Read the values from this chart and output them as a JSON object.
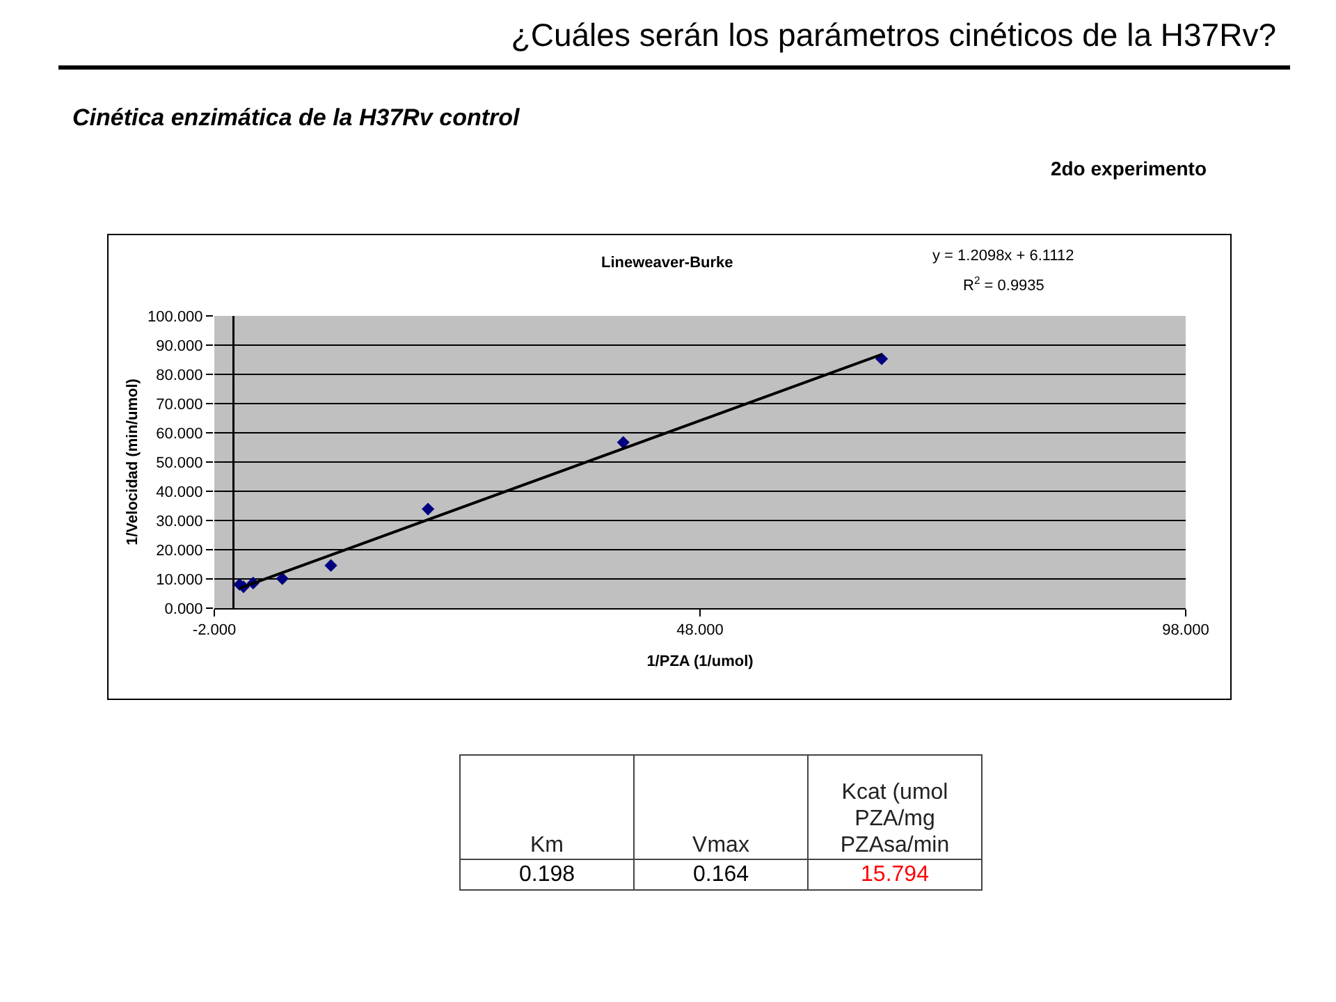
{
  "chart_data": [
    {
      "type": "scatter",
      "title": "¿Cuáles serán los parámetros cinéticos de la H37Rv?",
      "subtitle": "Cinética enzimática de la H37Rv control",
      "annotations": [
        "2do experimento",
        "Lineweaver-Burke",
        "y = 1.2098x + 6.1112",
        "R$^{2}$ = 0.9935"
      ],
      "xlabel": "1/PZA (1/umol)",
      "ylabel": "1/Velocidad (min/umol)",
      "x": [
        0.6,
        1.0,
        2.0,
        5.0,
        10.0,
        20.0,
        40.1,
        66.7
      ],
      "series": [
        {
          "color": "#000080",
          "values": [
            8.1,
            7.3,
            8.6,
            10.1,
            14.6,
            33.9,
            56.7,
            85.3
          ]
        },
        {
          "type": "line",
          "color": "#000000",
          "marker": "none",
          "x": [
            0.6,
            66.7
          ],
          "values": [
            6.8,
            86.8
          ]
        }
      ],
      "xlim": [
        -2,
        98
      ],
      "xticks": [
        {
          "value": -2,
          "label": "-2.000"
        },
        {
          "value": 48,
          "label": "48.000"
        },
        {
          "value": 98,
          "label": "98.000"
        }
      ],
      "ylim": [
        0,
        100
      ],
      "yticks": [
        {
          "value": 0,
          "label": "0.000"
        },
        {
          "value": 10,
          "label": "10.000"
        },
        {
          "value": 20,
          "label": "20.000"
        },
        {
          "value": 30,
          "label": "30.000"
        },
        {
          "value": 40,
          "label": "40.000"
        },
        {
          "value": 50,
          "label": "50.000"
        },
        {
          "value": 60,
          "label": "60.000"
        },
        {
          "value": 70,
          "label": "70.000"
        },
        {
          "value": 80,
          "label": "80.000"
        },
        {
          "value": 90,
          "label": "90.000"
        },
        {
          "value": 100,
          "label": "100.000"
        }
      ],
      "grid": "y",
      "marker": "diamond"
    },
    {
      "type": "other",
      "categories": [
        "Km",
        "Vmax",
        "Kcat (umol PZA/mg PZAsa/min"
      ],
      "values": [
        0.198,
        0.164,
        15.794
      ],
      "colors": [
        "#000000",
        "#000000",
        "#ff0000"
      ],
      "data_labels": true
    }
  ]
}
